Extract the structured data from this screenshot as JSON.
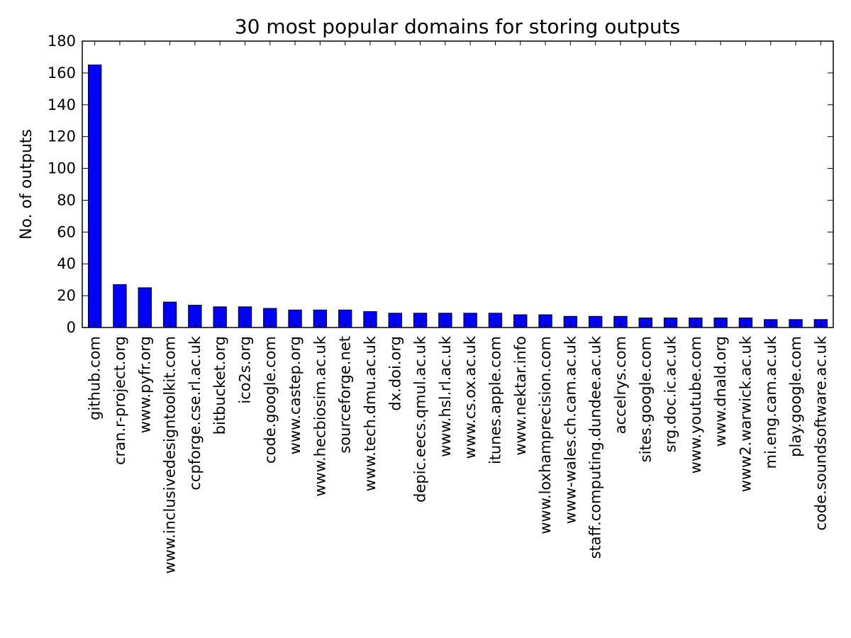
{
  "chart_data": {
    "type": "bar",
    "title": "30 most popular domains for storing outputs",
    "xlabel": "",
    "ylabel": "No. of outputs",
    "ylim": [
      0,
      180
    ],
    "yticks": [
      0,
      20,
      40,
      60,
      80,
      100,
      120,
      140,
      160,
      180
    ],
    "grid": false,
    "bar_color": "#0000ff",
    "categories": [
      "github.com",
      "cran.r-project.org",
      "www.pyfr.org",
      "www.inclusivedesigntoolkit.com",
      "ccpforge.cse.rl.ac.uk",
      "bitbucket.org",
      "ico2s.org",
      "code.google.com",
      "www.castep.org",
      "www.hecbiosim.ac.uk",
      "sourceforge.net",
      "www.tech.dmu.ac.uk",
      "dx.doi.org",
      "depic.eecs.qmul.ac.uk",
      "www.hsl.rl.ac.uk",
      "www.cs.ox.ac.uk",
      "itunes.apple.com",
      "www.nektar.info",
      "www.loxhamprecision.com",
      "www-wales.ch.cam.ac.uk",
      "staff.computing.dundee.ac.uk",
      "accelrys.com",
      "sites.google.com",
      "srg.doc.ic.ac.uk",
      "www.youtube.com",
      "www.dnald.org",
      "www2.warwick.ac.uk",
      "mi.eng.cam.ac.uk",
      "play.google.com",
      "code.soundsoftware.ac.uk"
    ],
    "values": [
      165,
      27,
      25,
      16,
      14,
      13,
      13,
      12,
      11,
      11,
      11,
      10,
      9,
      9,
      9,
      9,
      9,
      8,
      8,
      7,
      7,
      7,
      6,
      6,
      6,
      6,
      6,
      5,
      5,
      5
    ]
  }
}
